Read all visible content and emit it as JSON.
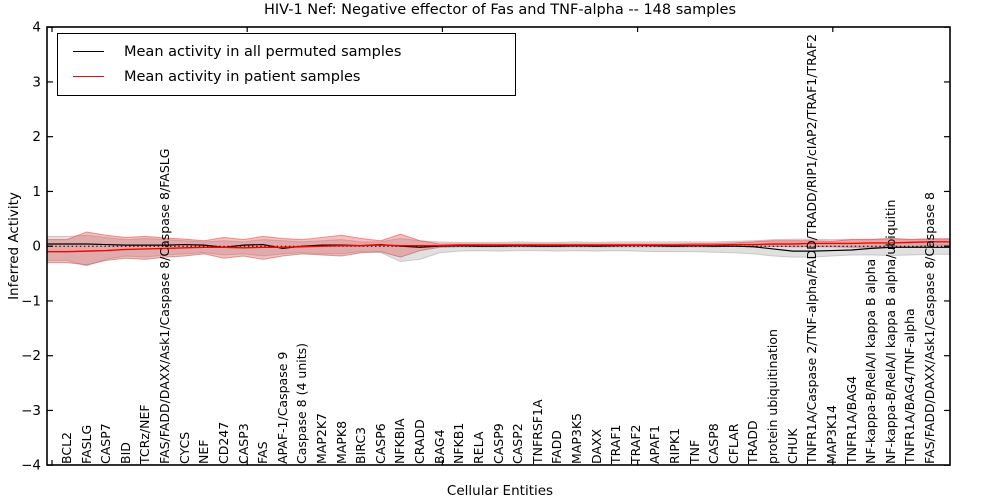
{
  "title": "HIV-1 Nef: Negative effector of Fas and TNF-alpha -- 148 samples",
  "legend": {
    "items": [
      {
        "label": "Mean activity in all permuted samples",
        "color": "#000000"
      },
      {
        "label": "Mean activity in patient samples",
        "color": "#ff0000"
      }
    ]
  },
  "chart_data": {
    "type": "line",
    "title": "HIV-1 Nef: Negative effector of Fas and TNF-alpha -- 148 samples",
    "xlabel": "Cellular Entities",
    "ylabel": "Inferred Activity",
    "ylim": [
      -4,
      4
    ],
    "yticks": [
      4,
      3,
      2,
      1,
      0,
      -1,
      -2,
      -3,
      -4
    ],
    "ytick_labels": [
      "4",
      "3",
      "2",
      "1",
      "0",
      "−1",
      "−2",
      "−3",
      "−4"
    ],
    "grid": false,
    "legend_position": "upper left",
    "categories": [
      "BCL2",
      "FASLG",
      "CASP7",
      "BID",
      "TCRz/NEF",
      "FAS/FADD/DAXX/Ask1/Caspase 8/Caspase 8/FASLG",
      "CYCS",
      "NEF",
      "CD247",
      "CASP3",
      "FAS",
      "APAF-1/Caspase 9",
      "Caspase 8 (4 units)",
      "MAP2K7",
      "MAPK8",
      "BIRC3",
      "CASP6",
      "NFKBIA",
      "CRADD",
      "BAG4",
      "NFKB1",
      "RELA",
      "CASP9",
      "CASP2",
      "TNFRSF1A",
      "FADD",
      "MAP3K5",
      "DAXX",
      "TRAF1",
      "TRAF2",
      "APAF1",
      "RIPK1",
      "TNF",
      "CASP8",
      "CFLAR",
      "TRADD",
      "protein ubiquitination",
      "CHUK",
      "TNFR1A/Caspase 2/TNF-alpha/FADD/TRADD/RIP1/cIAP2/TRAF1/TRAF2",
      "MAP3K14",
      "TNFR1A/BAG4",
      "NF-kappa-B/RelA/I kappa B alpha",
      "NF-kappa-B/RelA/I kappa B alpha/ubiquitin",
      "TNFR1A/BAG4/TNF-alpha",
      "FAS/FADD/DAXX/Ask1/Caspase 8/Caspase 8"
    ],
    "series": [
      {
        "name": "Mean activity in all permuted samples",
        "color": "#000000",
        "values": [
          0.04,
          0.04,
          0.03,
          0.02,
          0.02,
          0.02,
          0.03,
          0.02,
          -0.02,
          0.02,
          0.03,
          -0.04,
          0.0,
          0.02,
          0.02,
          0.01,
          0.03,
          0.0,
          -0.02,
          0.0,
          0.01,
          0.0,
          0.0,
          0.01,
          0.0,
          0.0,
          0.01,
          0.0,
          0.01,
          0.02,
          0.01,
          0.0,
          0.01,
          0.0,
          0.0,
          -0.01,
          -0.05,
          -0.09,
          -0.09,
          -0.08,
          -0.07,
          -0.04,
          -0.02,
          -0.02,
          -0.02
        ]
      },
      {
        "name": "Mean activity in patient samples",
        "color": "#ff0000",
        "values": [
          -0.1,
          -0.09,
          -0.08,
          -0.06,
          -0.05,
          -0.04,
          -0.03,
          -0.02,
          -0.02,
          -0.03,
          -0.02,
          -0.02,
          -0.01,
          0.0,
          0.01,
          0.01,
          0.02,
          0.01,
          0.01,
          0.01,
          0.02,
          0.02,
          0.02,
          0.02,
          0.02,
          0.02,
          0.02,
          0.02,
          0.02,
          0.02,
          0.02,
          0.02,
          0.02,
          0.02,
          0.03,
          0.03,
          0.04,
          0.04,
          0.05,
          0.05,
          0.05,
          0.06,
          0.06,
          0.07,
          0.08
        ]
      }
    ],
    "bands": [
      {
        "name": "permuted-samples-std-band",
        "color": "rgba(115,115,115,0.22)",
        "stroke": "rgba(115,115,115,0.30)",
        "upper": [
          0.18,
          0.2,
          0.16,
          0.12,
          0.14,
          0.12,
          0.1,
          0.08,
          0.1,
          0.08,
          0.12,
          0.1,
          0.08,
          0.1,
          0.12,
          0.08,
          0.08,
          0.14,
          0.1,
          0.08,
          0.07,
          0.07,
          0.07,
          0.08,
          0.07,
          0.07,
          0.08,
          0.07,
          0.08,
          0.08,
          0.08,
          0.08,
          0.08,
          0.08,
          0.09,
          0.1,
          0.12,
          0.13,
          0.13,
          0.12,
          0.13,
          0.13,
          0.14,
          0.13,
          0.14
        ],
        "lower": [
          -0.26,
          -0.36,
          -0.24,
          -0.18,
          -0.2,
          -0.16,
          -0.14,
          -0.12,
          -0.16,
          -0.14,
          -0.18,
          -0.14,
          -0.12,
          -0.14,
          -0.14,
          -0.1,
          -0.12,
          -0.28,
          -0.24,
          -0.12,
          -0.09,
          -0.08,
          -0.09,
          -0.08,
          -0.08,
          -0.09,
          -0.08,
          -0.09,
          -0.08,
          -0.09,
          -0.1,
          -0.1,
          -0.1,
          -0.11,
          -0.12,
          -0.14,
          -0.18,
          -0.2,
          -0.2,
          -0.18,
          -0.16,
          -0.16,
          -0.17,
          -0.16,
          -0.15
        ]
      },
      {
        "name": "patient-samples-std-band",
        "color": "rgba(228,72,72,0.35)",
        "stroke": "rgba(215,60,60,0.50)",
        "upper": [
          0.12,
          0.26,
          0.2,
          0.16,
          0.18,
          0.15,
          0.13,
          0.1,
          0.16,
          0.12,
          0.18,
          0.14,
          0.12,
          0.16,
          0.2,
          0.14,
          0.1,
          0.22,
          0.1,
          0.04,
          0.04,
          0.04,
          0.04,
          0.04,
          0.04,
          0.04,
          0.04,
          0.04,
          0.04,
          0.04,
          0.04,
          0.04,
          0.05,
          0.05,
          0.06,
          0.08,
          0.1,
          0.1,
          0.1,
          0.09,
          0.12,
          0.12,
          0.14,
          0.12,
          0.13
        ],
        "lower": [
          -0.3,
          -0.34,
          -0.26,
          -0.22,
          -0.24,
          -0.2,
          -0.18,
          -0.14,
          -0.22,
          -0.18,
          -0.24,
          -0.18,
          -0.14,
          -0.16,
          -0.18,
          -0.12,
          -0.1,
          -0.2,
          -0.08,
          -0.02,
          -0.01,
          -0.01,
          -0.01,
          -0.01,
          -0.01,
          -0.01,
          -0.01,
          -0.01,
          -0.01,
          -0.01,
          -0.01,
          -0.01,
          -0.01,
          -0.01,
          0.0,
          0.0,
          0.0,
          -0.01,
          -0.01,
          -0.01,
          -0.02,
          -0.02,
          -0.02,
          -0.02,
          0.02
        ]
      }
    ],
    "zero_line": true
  }
}
